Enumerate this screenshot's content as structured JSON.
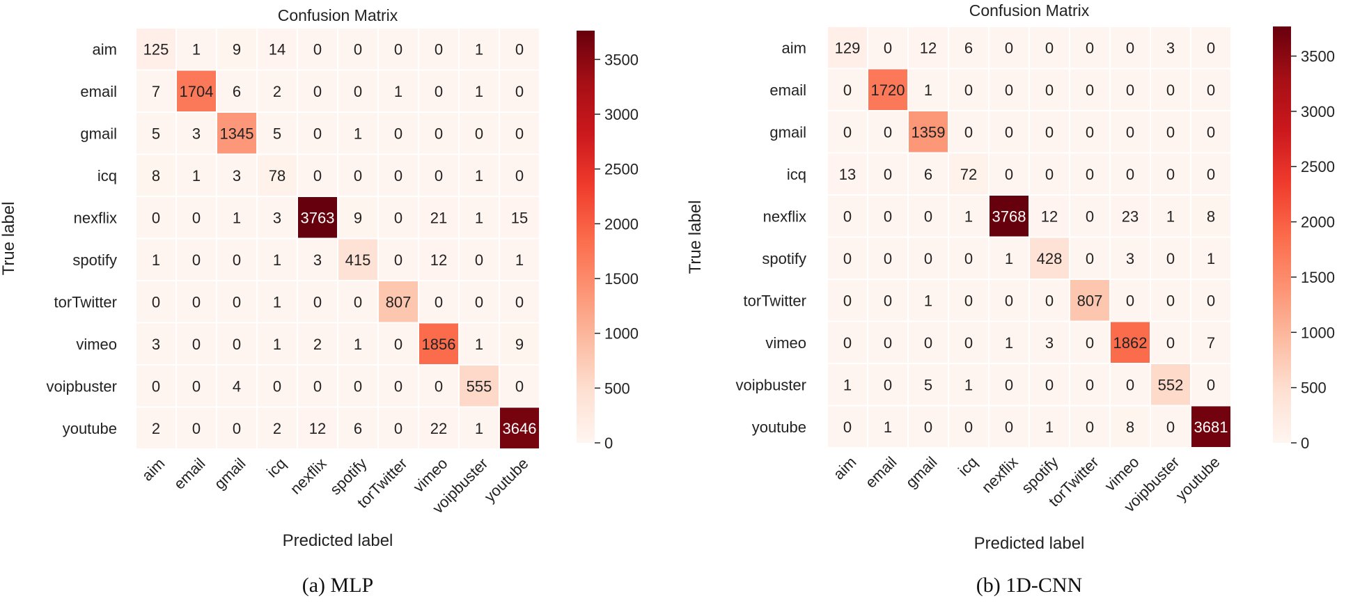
{
  "chart_data": [
    {
      "type": "heatmap",
      "title": "Confusion Matrix",
      "xlabel": "Predicted label",
      "ylabel": "True label",
      "caption": "(a) MLP",
      "categories": [
        "aim",
        "email",
        "gmail",
        "icq",
        "nexflix",
        "spotify",
        "torTwitter",
        "vimeo",
        "voipbuster",
        "youtube"
      ],
      "matrix": [
        [
          125,
          1,
          9,
          14,
          0,
          0,
          0,
          0,
          1,
          0
        ],
        [
          7,
          1704,
          6,
          2,
          0,
          0,
          1,
          0,
          1,
          0
        ],
        [
          5,
          3,
          1345,
          5,
          0,
          1,
          0,
          0,
          0,
          0
        ],
        [
          8,
          1,
          3,
          78,
          0,
          0,
          0,
          0,
          1,
          0
        ],
        [
          0,
          0,
          1,
          3,
          3763,
          9,
          0,
          21,
          1,
          15
        ],
        [
          1,
          0,
          0,
          1,
          3,
          415,
          0,
          12,
          0,
          1
        ],
        [
          0,
          0,
          0,
          1,
          0,
          0,
          807,
          0,
          0,
          0
        ],
        [
          3,
          0,
          0,
          1,
          2,
          1,
          0,
          1856,
          1,
          9
        ],
        [
          0,
          0,
          4,
          0,
          0,
          0,
          0,
          0,
          555,
          0
        ],
        [
          2,
          0,
          0,
          2,
          12,
          6,
          0,
          22,
          1,
          3646
        ]
      ],
      "colorbar": {
        "range": [
          0,
          3763
        ],
        "ticks": [
          0,
          500,
          1000,
          1500,
          2000,
          2500,
          3000,
          3500
        ],
        "tick_labels": [
          "0",
          "500",
          "1000",
          "1500",
          "2000",
          "2500",
          "3000",
          "3500"
        ]
      },
      "colormap": [
        "#fff5f0",
        "#fee0d2",
        "#fcbba1",
        "#fc9272",
        "#fb6a4a",
        "#ef3b2c",
        "#cb181d",
        "#a50f15",
        "#67000d"
      ],
      "grid_lines": "white"
    },
    {
      "type": "heatmap",
      "title": "Confusion Matrix",
      "xlabel": "Predicted label",
      "ylabel": "True label",
      "caption": "(b) 1D-CNN",
      "categories": [
        "aim",
        "email",
        "gmail",
        "icq",
        "nexflix",
        "spotify",
        "torTwitter",
        "vimeo",
        "voipbuster",
        "youtube"
      ],
      "matrix": [
        [
          129,
          0,
          12,
          6,
          0,
          0,
          0,
          0,
          3,
          0
        ],
        [
          0,
          1720,
          1,
          0,
          0,
          0,
          0,
          0,
          0,
          0
        ],
        [
          0,
          0,
          1359,
          0,
          0,
          0,
          0,
          0,
          0,
          0
        ],
        [
          13,
          0,
          6,
          72,
          0,
          0,
          0,
          0,
          0,
          0
        ],
        [
          0,
          0,
          0,
          1,
          3768,
          12,
          0,
          23,
          1,
          8
        ],
        [
          0,
          0,
          0,
          0,
          1,
          428,
          0,
          3,
          0,
          1
        ],
        [
          0,
          0,
          1,
          0,
          0,
          0,
          807,
          0,
          0,
          0
        ],
        [
          0,
          0,
          0,
          0,
          1,
          3,
          0,
          1862,
          0,
          7
        ],
        [
          1,
          0,
          5,
          1,
          0,
          0,
          0,
          0,
          552,
          0
        ],
        [
          0,
          1,
          0,
          0,
          0,
          1,
          0,
          8,
          0,
          3681
        ]
      ],
      "colorbar": {
        "range": [
          0,
          3768
        ],
        "ticks": [
          0,
          500,
          1000,
          1500,
          2000,
          2500,
          3000,
          3500
        ],
        "tick_labels": [
          "0",
          "500",
          "1000",
          "1500",
          "2000",
          "2500",
          "3000",
          "3500"
        ]
      },
      "colormap": [
        "#fff5f0",
        "#fee0d2",
        "#fcbba1",
        "#fc9272",
        "#fb6a4a",
        "#ef3b2c",
        "#cb181d",
        "#a50f15",
        "#67000d"
      ],
      "grid_lines": "white"
    }
  ]
}
